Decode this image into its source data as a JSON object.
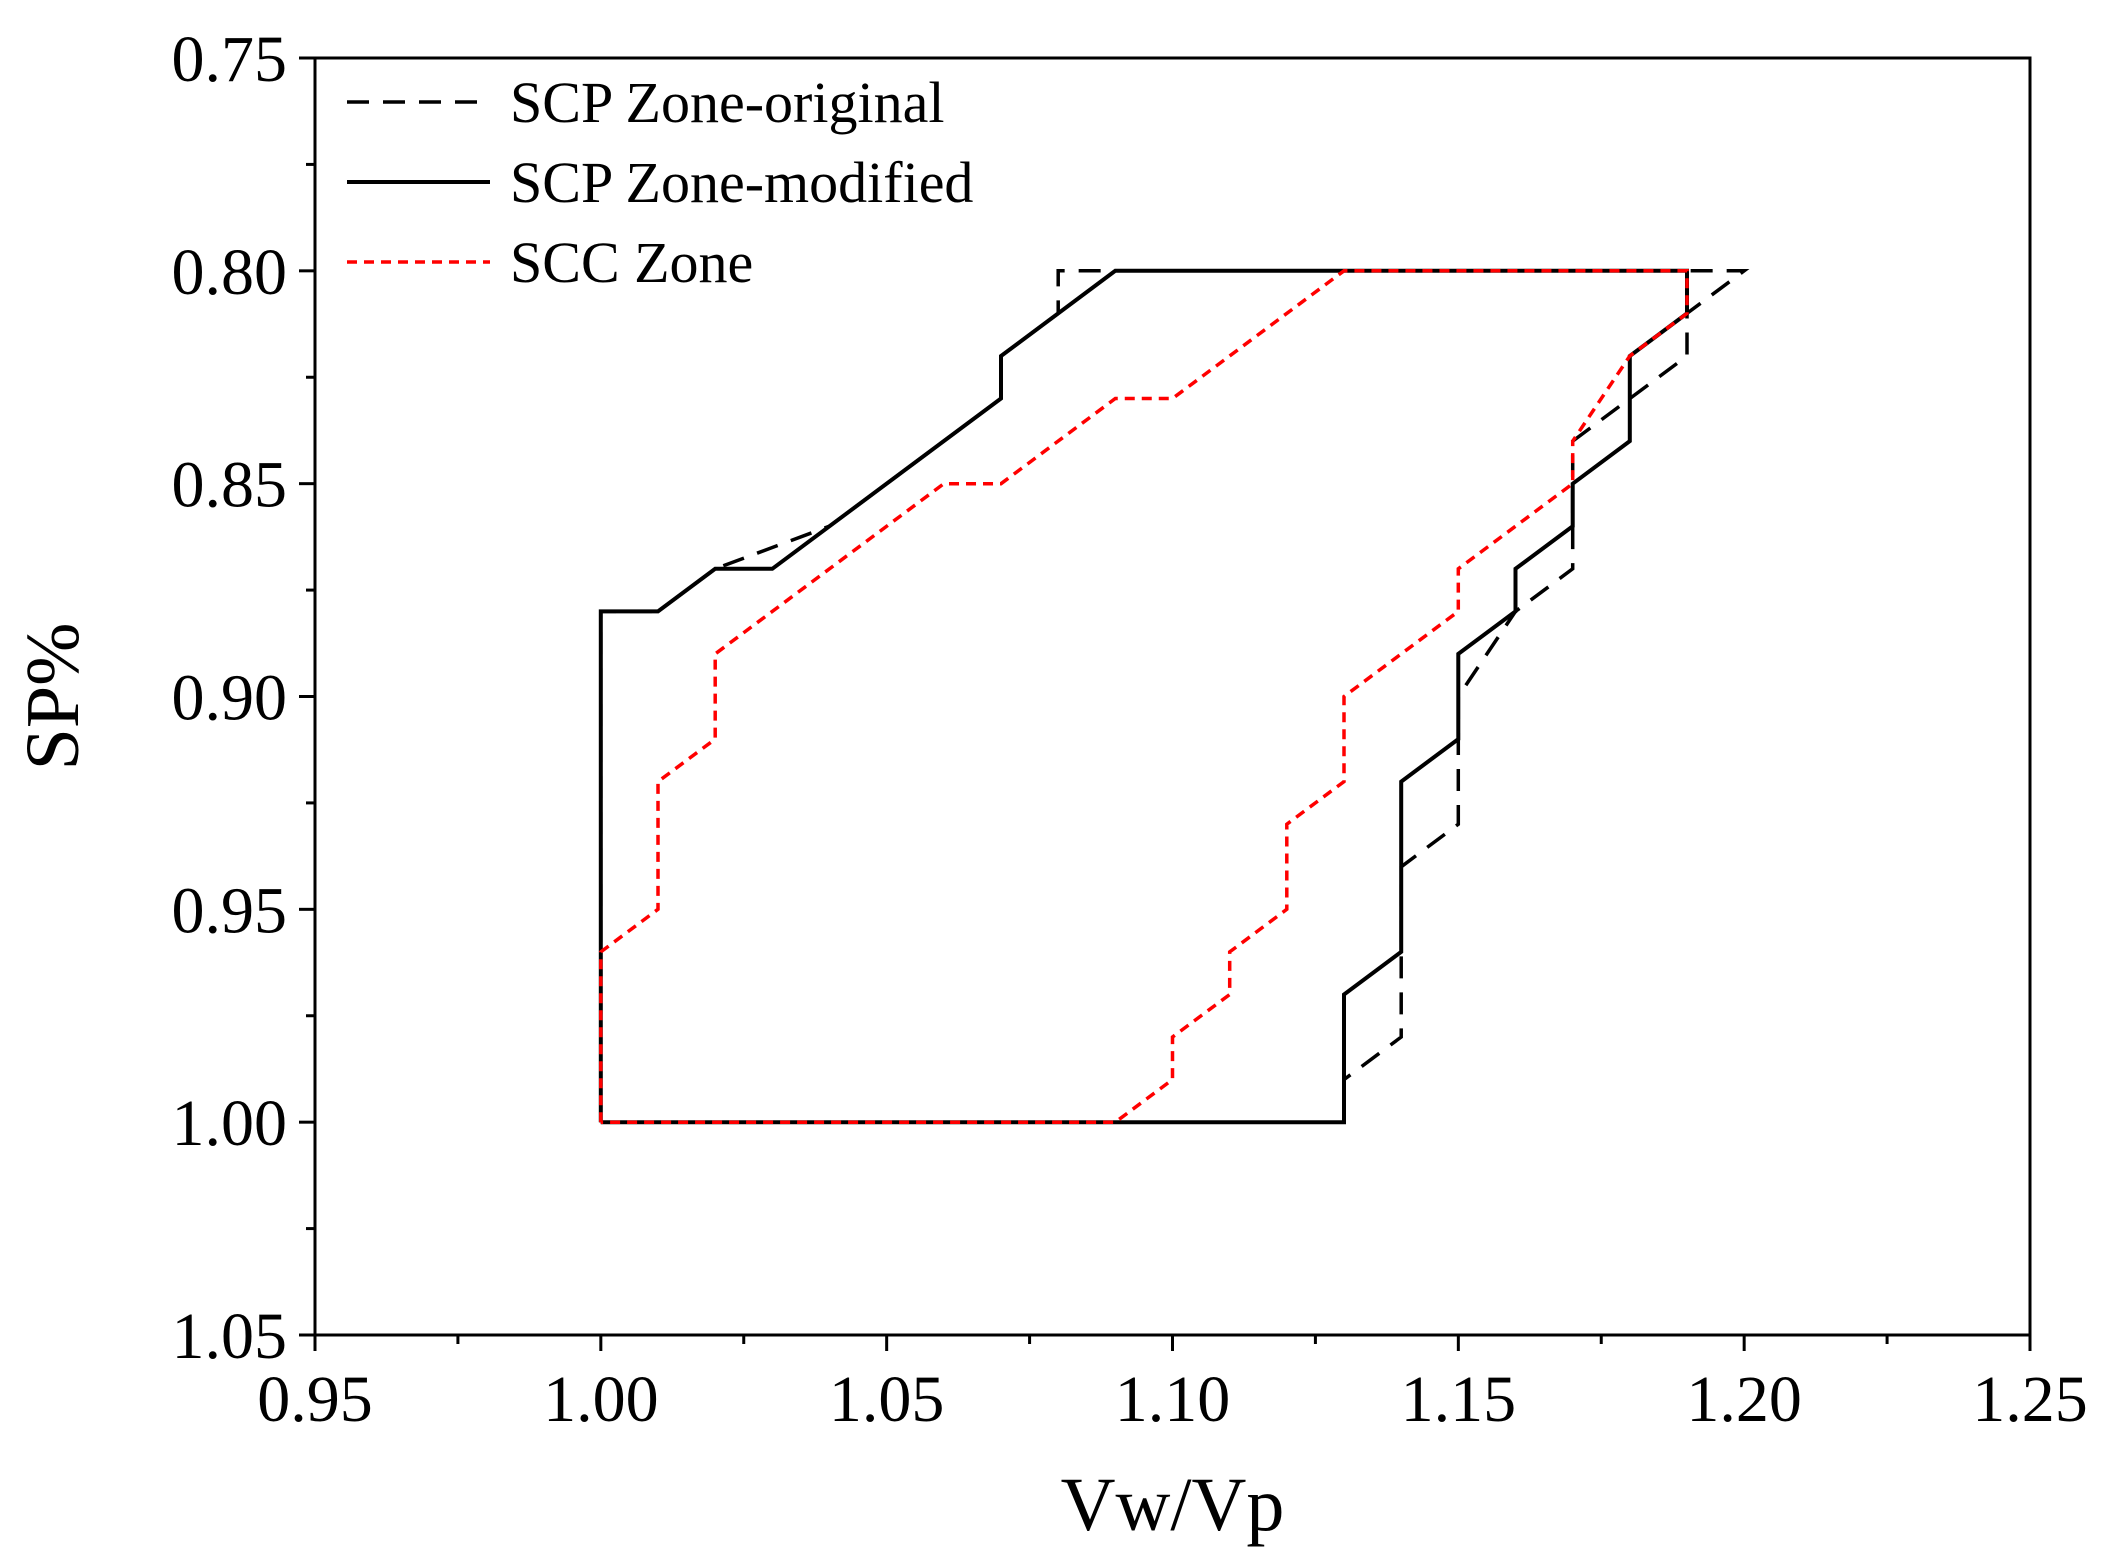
{
  "chart_data": {
    "type": "line",
    "title": "",
    "xlabel": "Vw/Vp",
    "ylabel": "SP%",
    "xlim": [
      0.95,
      1.25
    ],
    "ylim": [
      0.75,
      1.05
    ],
    "y_inverted": true,
    "grid": false,
    "legend_position": "top-left",
    "x_ticks": [
      "0.95",
      "1.00",
      "1.05",
      "1.10",
      "1.15",
      "1.20",
      "1.25"
    ],
    "y_ticks": [
      "0.75",
      "0.80",
      "0.85",
      "0.90",
      "0.95",
      "1.00",
      "1.05"
    ],
    "series": [
      {
        "name": "SCP Zone-original",
        "style": "dashed",
        "color": "#000000",
        "points": [
          [
            1.0,
            1.0
          ],
          [
            1.0,
            0.88
          ],
          [
            1.01,
            0.88
          ],
          [
            1.02,
            0.87
          ],
          [
            1.03,
            0.865
          ],
          [
            1.04,
            0.86
          ],
          [
            1.07,
            0.83
          ],
          [
            1.07,
            0.82
          ],
          [
            1.08,
            0.81
          ],
          [
            1.08,
            0.8
          ],
          [
            1.2,
            0.8
          ],
          [
            1.19,
            0.81
          ],
          [
            1.19,
            0.82
          ],
          [
            1.17,
            0.84
          ],
          [
            1.17,
            0.87
          ],
          [
            1.16,
            0.88
          ],
          [
            1.15,
            0.9
          ],
          [
            1.15,
            0.93
          ],
          [
            1.14,
            0.94
          ],
          [
            1.14,
            0.98
          ],
          [
            1.13,
            0.99
          ],
          [
            1.13,
            1.0
          ],
          [
            1.0,
            1.0
          ]
        ]
      },
      {
        "name": "SCP Zone-modified",
        "style": "solid",
        "color": "#000000",
        "points": [
          [
            1.0,
            1.0
          ],
          [
            1.0,
            0.88
          ],
          [
            1.01,
            0.88
          ],
          [
            1.02,
            0.87
          ],
          [
            1.03,
            0.87
          ],
          [
            1.07,
            0.83
          ],
          [
            1.07,
            0.82
          ],
          [
            1.09,
            0.8
          ],
          [
            1.19,
            0.8
          ],
          [
            1.19,
            0.81
          ],
          [
            1.18,
            0.82
          ],
          [
            1.18,
            0.84
          ],
          [
            1.17,
            0.85
          ],
          [
            1.17,
            0.86
          ],
          [
            1.16,
            0.87
          ],
          [
            1.16,
            0.88
          ],
          [
            1.15,
            0.89
          ],
          [
            1.15,
            0.91
          ],
          [
            1.14,
            0.92
          ],
          [
            1.14,
            0.96
          ],
          [
            1.13,
            0.97
          ],
          [
            1.13,
            1.0
          ],
          [
            1.0,
            1.0
          ]
        ]
      },
      {
        "name": "SCC Zone",
        "style": "dotted",
        "color": "#ff0000",
        "points": [
          [
            1.0,
            1.0
          ],
          [
            1.0,
            0.96
          ],
          [
            1.01,
            0.95
          ],
          [
            1.01,
            0.92
          ],
          [
            1.02,
            0.91
          ],
          [
            1.02,
            0.89
          ],
          [
            1.06,
            0.85
          ],
          [
            1.07,
            0.85
          ],
          [
            1.09,
            0.83
          ],
          [
            1.1,
            0.83
          ],
          [
            1.13,
            0.8
          ],
          [
            1.19,
            0.8
          ],
          [
            1.19,
            0.81
          ],
          [
            1.18,
            0.82
          ],
          [
            1.17,
            0.84
          ],
          [
            1.17,
            0.85
          ],
          [
            1.15,
            0.87
          ],
          [
            1.15,
            0.88
          ],
          [
            1.13,
            0.9
          ],
          [
            1.13,
            0.92
          ],
          [
            1.12,
            0.93
          ],
          [
            1.12,
            0.95
          ],
          [
            1.11,
            0.96
          ],
          [
            1.11,
            0.97
          ],
          [
            1.1,
            0.98
          ],
          [
            1.1,
            0.99
          ],
          [
            1.09,
            1.0
          ],
          [
            1.0,
            1.0
          ]
        ]
      }
    ]
  }
}
